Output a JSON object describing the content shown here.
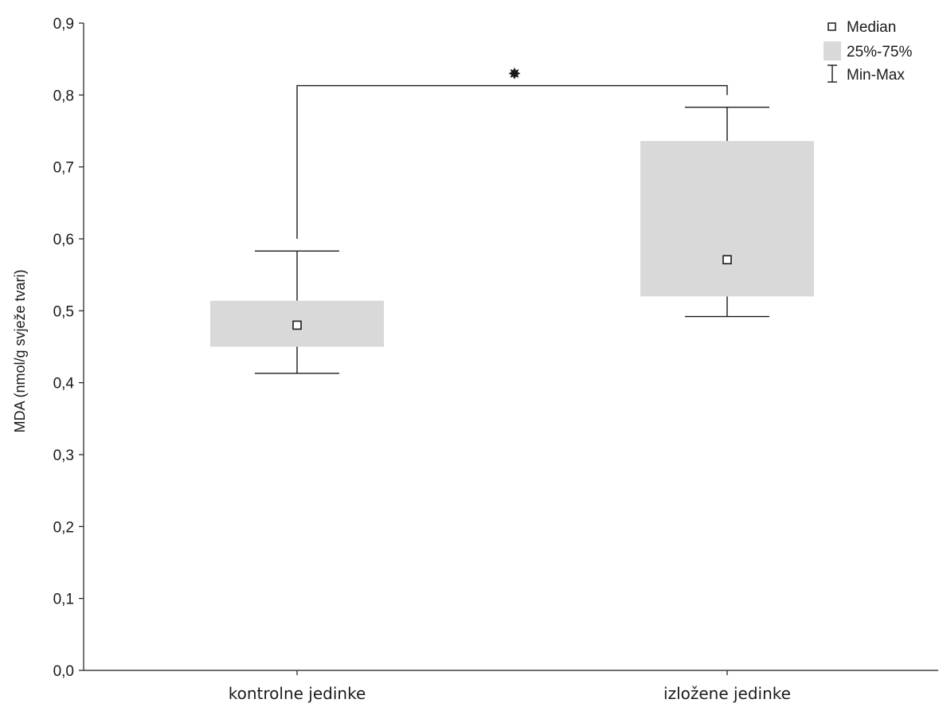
{
  "chart_data": {
    "type": "box",
    "ylabel": "MDA (nmol/g svježe tvari)",
    "xlabel": "",
    "ylim": [
      0,
      0.9
    ],
    "yticks": [
      "0,0",
      "0,1",
      "0,2",
      "0,3",
      "0,4",
      "0,5",
      "0,6",
      "0,7",
      "0,8",
      "0,9"
    ],
    "categories": [
      "kontrolne jedinke",
      "izložene jedinke"
    ],
    "boxes": [
      {
        "median": 0.48,
        "q1": 0.45,
        "q3": 0.514,
        "min": 0.413,
        "max": 0.583
      },
      {
        "median": 0.571,
        "q1": 0.52,
        "q3": 0.736,
        "min": 0.492,
        "max": 0.783
      }
    ],
    "legend": {
      "position": "top-right",
      "items": [
        "Median",
        "25%-75%",
        "Min-Max"
      ]
    },
    "significance": {
      "symbol": "✸",
      "between": [
        0,
        1
      ],
      "bracket_y": 0.813,
      "left_drop_to": 0.6,
      "right_drop_to": 0.8
    },
    "colors": {
      "box_fill": "#d9d9d9",
      "line": "#1a1a1a",
      "median_fill": "#ffffff"
    },
    "grid": false
  }
}
